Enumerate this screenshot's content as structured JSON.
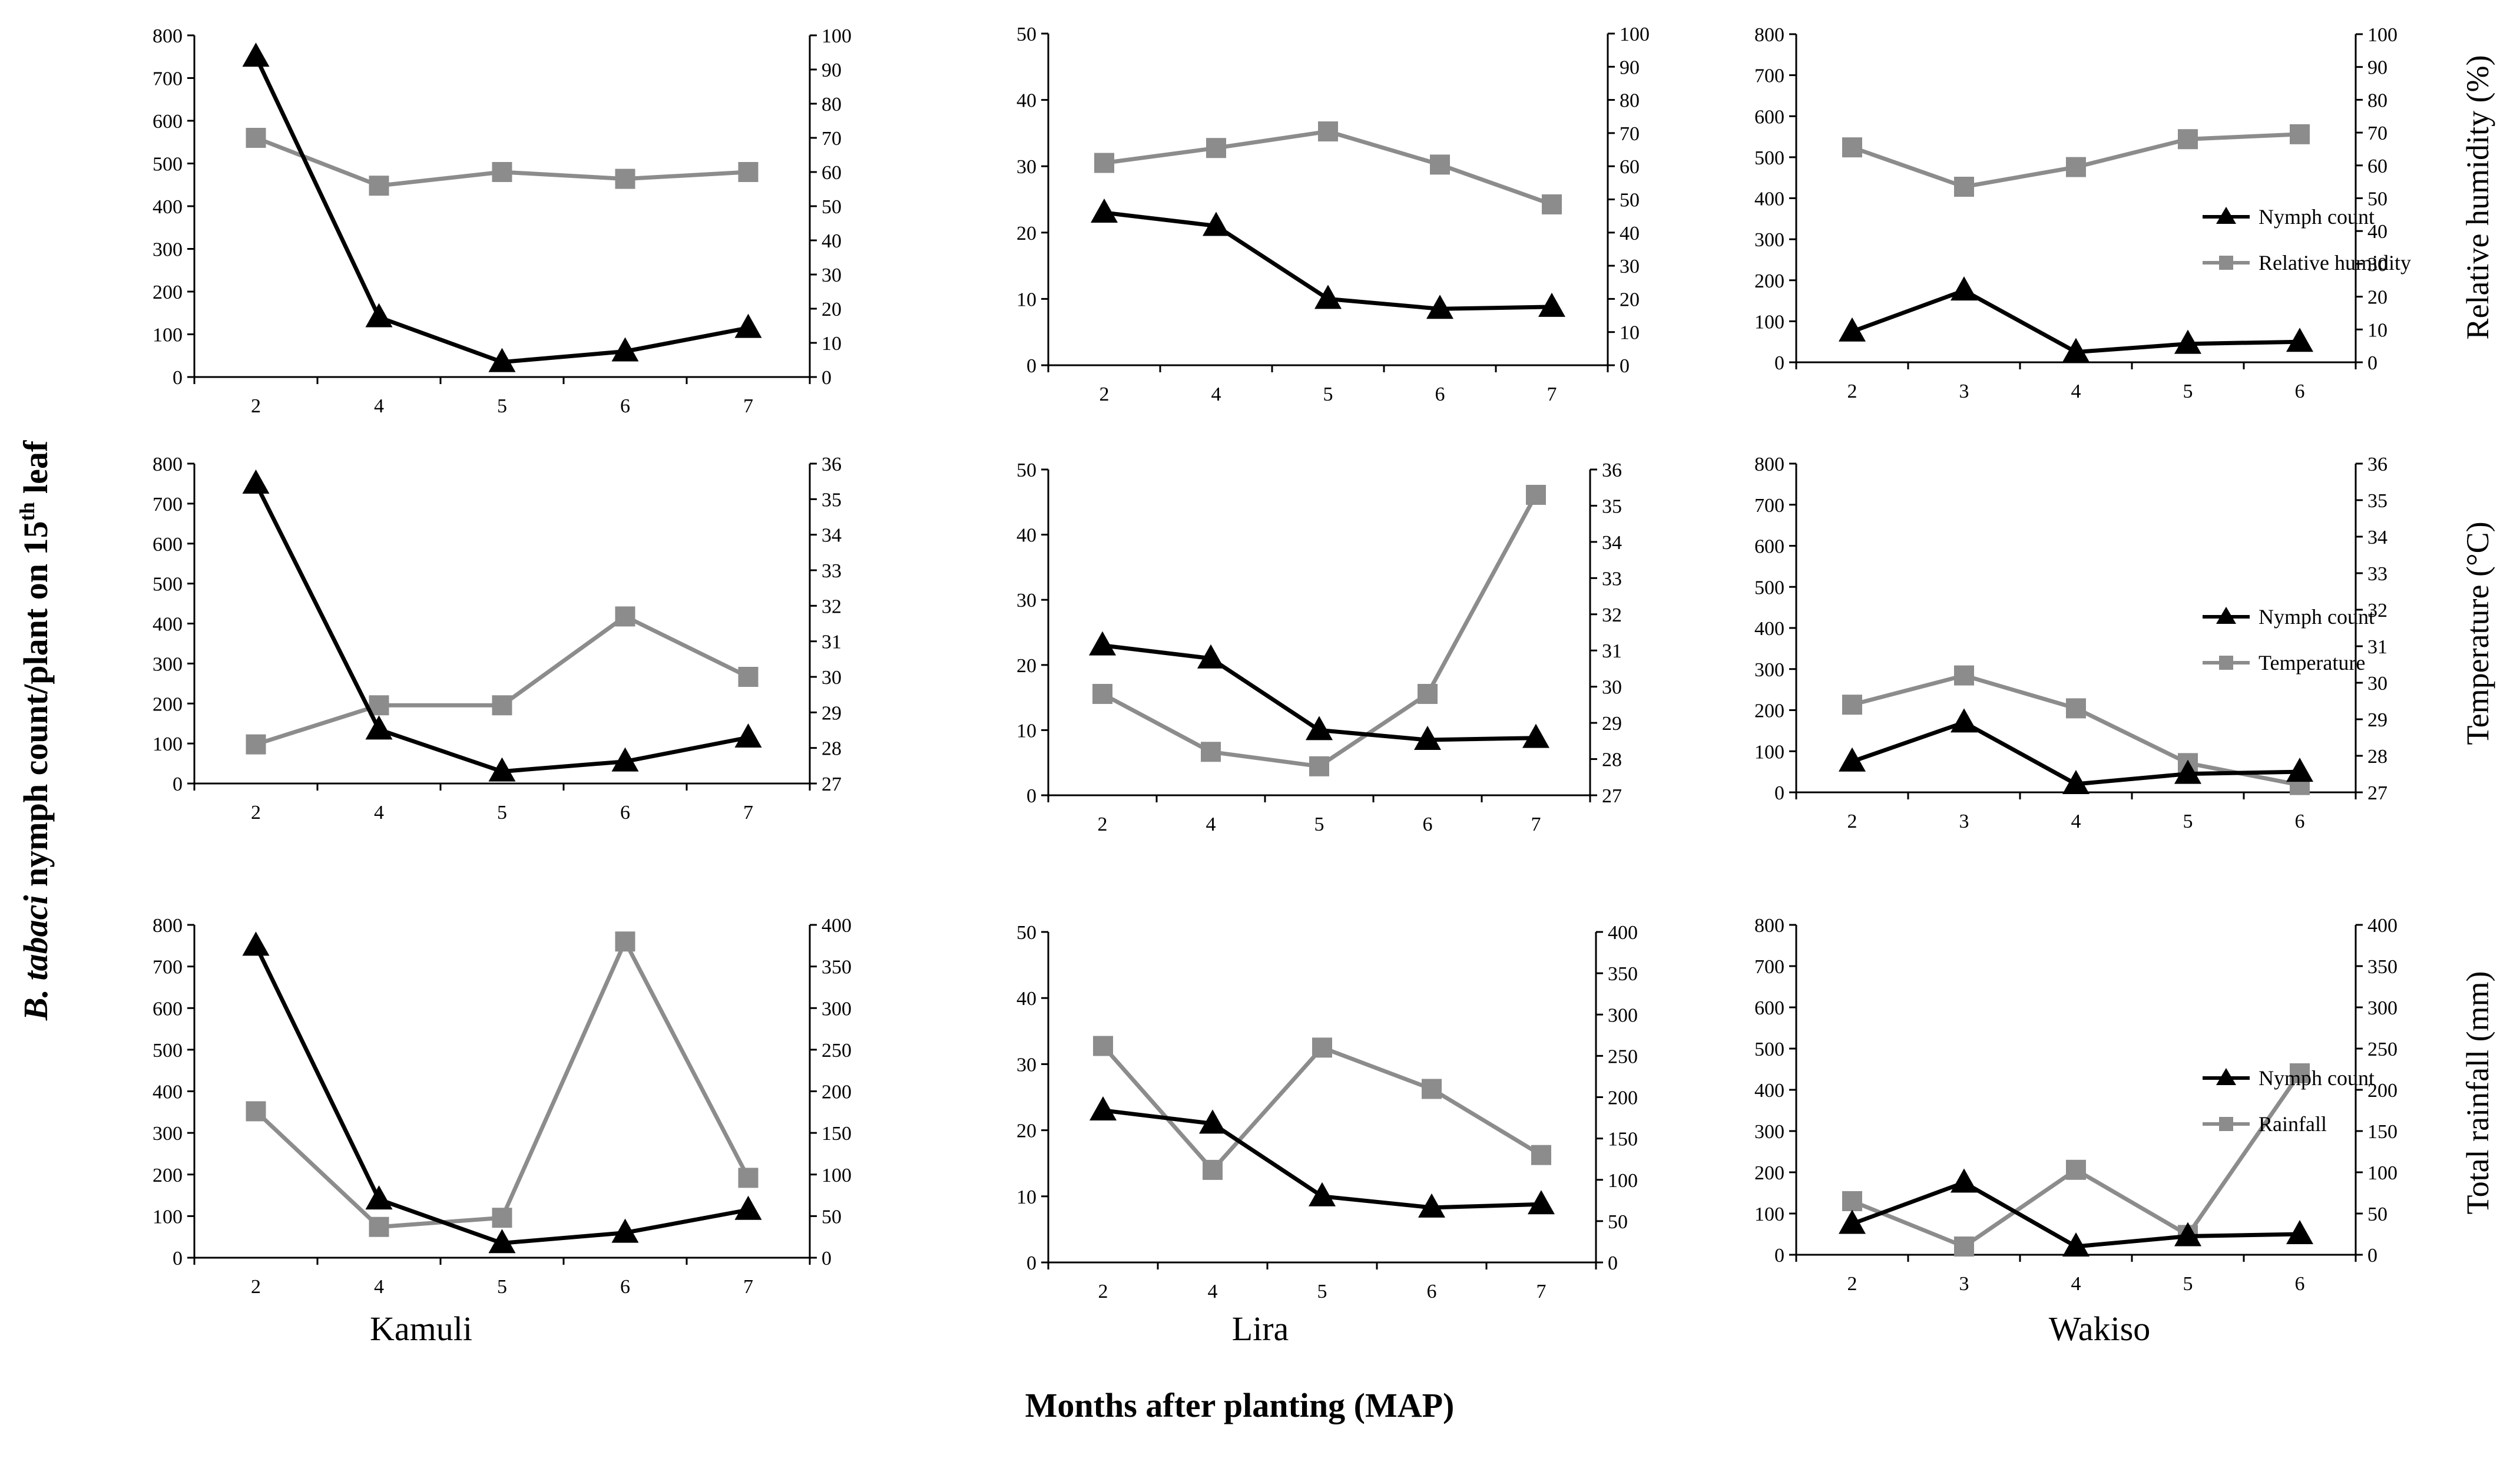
{
  "figure": {
    "y_title_italic": "B. tabaci",
    "y_title_rest": " nymph count/plant on 15",
    "y_title_sup": "th",
    "y_title_end": " leaf",
    "x_title": "Months after planting (MAP)",
    "sites": [
      "Kamuli",
      "Lira",
      "Wakiso"
    ],
    "row_titles": [
      "Relative humidity (%)",
      "Temperature (°C)",
      "Total rainfall (mm)"
    ]
  },
  "colors": {
    "nymph": "#000000",
    "secondary": "#8c8c8c"
  },
  "chart_data": [
    {
      "id": "kamuli-rh",
      "type": "line",
      "categories": [
        "2",
        "4",
        "5",
        "6",
        "7"
      ],
      "ylim": [
        0,
        800
      ],
      "y2lim": [
        0,
        100
      ],
      "series": [
        {
          "name": "Nymph count",
          "axis": "left",
          "marker": "triangle",
          "values": [
            750,
            140,
            35,
            60,
            115
          ]
        },
        {
          "name": "Relative humidity",
          "axis": "right",
          "marker": "square",
          "values": [
            70,
            56,
            60,
            58,
            60
          ]
        }
      ]
    },
    {
      "id": "lira-rh",
      "type": "line",
      "categories": [
        "2",
        "4",
        "5",
        "6",
        "7"
      ],
      "ylim": [
        0,
        50
      ],
      "y2lim": [
        0,
        100
      ],
      "series": [
        {
          "name": "Nymph count",
          "axis": "left",
          "marker": "triangle",
          "values": [
            23,
            21,
            10,
            8.5,
            8.8
          ]
        },
        {
          "name": "Relative humidity",
          "axis": "right",
          "marker": "square",
          "values": [
            61,
            65.5,
            70.5,
            60.5,
            48.5
          ]
        }
      ]
    },
    {
      "id": "wakiso-rh",
      "type": "line",
      "categories": [
        "2",
        "3",
        "4",
        "5",
        "6"
      ],
      "ylim": [
        0,
        800
      ],
      "y2lim": [
        0,
        100
      ],
      "legend": [
        "Nymph count",
        "Relative humidity"
      ],
      "series": [
        {
          "name": "Nymph count",
          "axis": "left",
          "marker": "triangle",
          "values": [
            75,
            175,
            25,
            45,
            50
          ]
        },
        {
          "name": "Relative humidity",
          "axis": "right",
          "marker": "square",
          "values": [
            65.5,
            53.5,
            59.5,
            68,
            69.5
          ]
        }
      ]
    },
    {
      "id": "kamuli-temp",
      "type": "line",
      "categories": [
        "2",
        "4",
        "5",
        "6",
        "7"
      ],
      "ylim": [
        0,
        800
      ],
      "y2lim": [
        27,
        36
      ],
      "series": [
        {
          "name": "Nymph count",
          "axis": "left",
          "marker": "triangle",
          "values": [
            750,
            135,
            30,
            55,
            115
          ]
        },
        {
          "name": "Temperature",
          "axis": "right",
          "marker": "square",
          "values": [
            28.1,
            29.2,
            29.2,
            31.7,
            30
          ]
        }
      ]
    },
    {
      "id": "lira-temp",
      "type": "line",
      "categories": [
        "2",
        "4",
        "5",
        "6",
        "7"
      ],
      "ylim": [
        0,
        50
      ],
      "y2lim": [
        27,
        36
      ],
      "series": [
        {
          "name": "Nymph count",
          "axis": "left",
          "marker": "triangle",
          "values": [
            23,
            21,
            10,
            8.5,
            8.8
          ]
        },
        {
          "name": "Temperature",
          "axis": "right",
          "marker": "square",
          "values": [
            29.8,
            28.2,
            27.8,
            29.8,
            35.3
          ]
        }
      ]
    },
    {
      "id": "wakiso-temp",
      "type": "line",
      "categories": [
        "2",
        "3",
        "4",
        "5",
        "6"
      ],
      "ylim": [
        0,
        800
      ],
      "y2lim": [
        27,
        36
      ],
      "legend": [
        "Nymph count",
        "Temperature"
      ],
      "series": [
        {
          "name": "Nymph count",
          "axis": "left",
          "marker": "triangle",
          "values": [
            75,
            170,
            20,
            45,
            50
          ]
        },
        {
          "name": "Temperature",
          "axis": "right",
          "marker": "square",
          "values": [
            29.4,
            30.2,
            29.3,
            27.8,
            27.2
          ]
        }
      ]
    },
    {
      "id": "kamuli-rain",
      "type": "line",
      "categories": [
        "2",
        "4",
        "5",
        "6",
        "7"
      ],
      "ylim": [
        0,
        800
      ],
      "y2lim": [
        0,
        400
      ],
      "series": [
        {
          "name": "Nymph count",
          "axis": "left",
          "marker": "triangle",
          "values": [
            750,
            140,
            35,
            60,
            115
          ]
        },
        {
          "name": "Rainfall",
          "axis": "right",
          "marker": "square",
          "values": [
            176,
            37,
            48,
            380,
            96
          ]
        }
      ]
    },
    {
      "id": "lira-rain",
      "type": "line",
      "categories": [
        "2",
        "4",
        "5",
        "6",
        "7"
      ],
      "ylim": [
        0,
        50
      ],
      "y2lim": [
        0,
        400
      ],
      "series": [
        {
          "name": "Nymph count",
          "axis": "left",
          "marker": "triangle",
          "values": [
            23,
            21,
            10,
            8.3,
            8.8
          ]
        },
        {
          "name": "Rainfall",
          "axis": "right",
          "marker": "square",
          "values": [
            262,
            112,
            260,
            210,
            130
          ]
        }
      ]
    },
    {
      "id": "wakiso-rain",
      "type": "line",
      "categories": [
        "2",
        "3",
        "4",
        "5",
        "6"
      ],
      "ylim": [
        0,
        800
      ],
      "y2lim": [
        0,
        400
      ],
      "legend": [
        "Nymph count",
        "Rainfall"
      ],
      "series": [
        {
          "name": "Nymph count",
          "axis": "left",
          "marker": "triangle",
          "values": [
            75,
            175,
            20,
            45,
            50
          ]
        },
        {
          "name": "Rainfall",
          "axis": "right",
          "marker": "square",
          "values": [
            65,
            10,
            103,
            24,
            220
          ]
        }
      ]
    }
  ]
}
